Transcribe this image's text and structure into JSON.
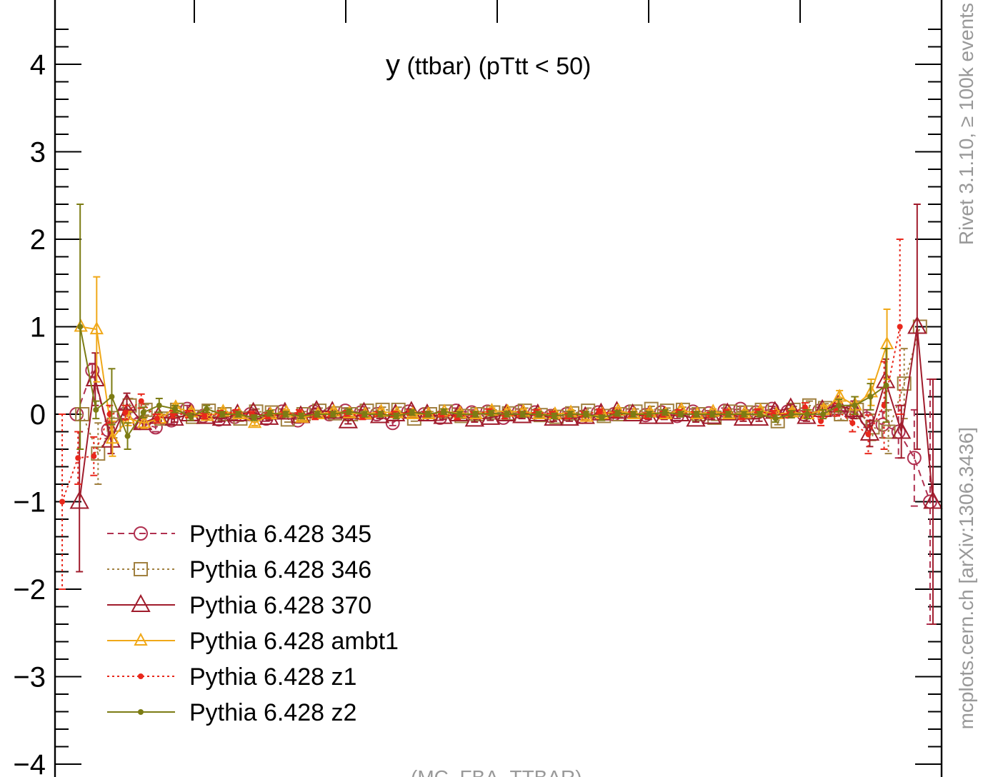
{
  "chart_data": {
    "type": "line",
    "title": "y (ttbar) (pTtt < 50)",
    "title_main": "y",
    "title_rest": " (ttbar) (pTtt < 50)",
    "xlabel": "",
    "ylabel": "",
    "ylim": [
      -4.0,
      4.55
    ],
    "xlim": [
      -0.5,
      55.5
    ],
    "y_ticks": [
      {
        "value": 4,
        "label": "4"
      },
      {
        "value": 3,
        "label": "3"
      },
      {
        "value": 2,
        "label": "2"
      },
      {
        "value": 1,
        "label": "1"
      },
      {
        "value": 0,
        "label": "0"
      },
      {
        "value": -1,
        "label": "−1"
      },
      {
        "value": -2,
        "label": "−2"
      },
      {
        "value": -3,
        "label": "−3"
      },
      {
        "value": -4,
        "label": "−4"
      }
    ],
    "grid": false,
    "legend_position": "bottom-left",
    "footer": "(MC_FBA_TTBAR)",
    "side_label_top": "Rivet 3.1.10, ≥ 100k events",
    "side_label_bottom": "mcplots.cern.ch [arXiv:1306.3436]",
    "series": [
      {
        "name": "Pythia 6.428 345",
        "color": "#b03050",
        "line_style": "dashed",
        "marker": "circle",
        "values": [
          -0.0,
          0.0,
          0.5,
          -0.18,
          0.0,
          -0.1,
          -0.15,
          -0.07,
          0.06,
          -0.02,
          -0.06,
          -0.03,
          0.0,
          -0.05,
          0.03,
          -0.07,
          0.03,
          0.0,
          0.04,
          0.02,
          0.0,
          -0.1,
          0.03,
          0.0,
          -0.04,
          0.04,
          0.02,
          0.03,
          -0.04,
          0.03,
          0.02,
          -0.02,
          0.0,
          -0.03,
          0.02,
          0.0,
          0.03,
          -0.01,
          0.02,
          -0.02,
          0.03,
          0.01,
          0.04,
          0.06,
          0.02,
          0.06,
          0.03,
          0.0,
          0.04,
          0.05,
          0.03,
          -0.05,
          -0.12,
          -0.2,
          -0.5,
          -1.0
        ],
        "errors": [
          0,
          0,
          0.08,
          0.1,
          0.05,
          0.05,
          0.05,
          0.04,
          0.04,
          0.03,
          0.03,
          0.03,
          0.03,
          0.03,
          0.03,
          0.03,
          0.03,
          0.03,
          0.03,
          0.03,
          0.03,
          0.03,
          0.03,
          0.03,
          0.03,
          0.03,
          0.03,
          0.03,
          0.03,
          0.03,
          0.03,
          0.03,
          0.03,
          0.03,
          0.03,
          0.03,
          0.03,
          0.03,
          0.03,
          0.03,
          0.03,
          0.03,
          0.03,
          0.03,
          0.03,
          0.03,
          0.03,
          0.04,
          0.04,
          0.05,
          0.06,
          0.1,
          0.15,
          0.3,
          0.55,
          1.4
        ]
      },
      {
        "name": "Pythia 6.428 346",
        "color": "#a08040",
        "line_style": "dotted",
        "marker": "square",
        "values": [
          0,
          0,
          -0.45,
          -0.12,
          0.1,
          0.05,
          -0.05,
          0.05,
          -0.03,
          0.04,
          0.0,
          -0.05,
          0.03,
          0.02,
          -0.06,
          0.0,
          0.04,
          0.01,
          0.0,
          0.04,
          0.05,
          0.05,
          -0.05,
          0.0,
          0.03,
          -0.02,
          0.0,
          0.02,
          0.01,
          0.04,
          -0.01,
          -0.03,
          0.01,
          0.04,
          -0.02,
          0.0,
          0.03,
          0.06,
          0.04,
          0.05,
          0.0,
          -0.04,
          0.03,
          0.02,
          0.05,
          -0.08,
          0.05,
          0.1,
          0.07,
          0.0,
          0.05,
          -0.15,
          -0.2,
          0.35,
          1.0,
          0
        ],
        "errors": [
          0,
          0,
          0.35,
          0.15,
          0.08,
          0.06,
          0.05,
          0.04,
          0.04,
          0.03,
          0.03,
          0.03,
          0.03,
          0.03,
          0.03,
          0.03,
          0.03,
          0.03,
          0.03,
          0.03,
          0.03,
          0.03,
          0.03,
          0.03,
          0.03,
          0.03,
          0.03,
          0.03,
          0.03,
          0.03,
          0.03,
          0.03,
          0.03,
          0.03,
          0.03,
          0.03,
          0.03,
          0.03,
          0.03,
          0.03,
          0.03,
          0.03,
          0.03,
          0.03,
          0.03,
          0.04,
          0.04,
          0.05,
          0.05,
          0.07,
          0.1,
          0.15,
          0.25,
          0.4,
          0.0,
          0
        ]
      },
      {
        "name": "Pythia 6.428 370",
        "color": "#a01c2c",
        "line_style": "solid",
        "marker": "triangle",
        "values": [
          0,
          -1.0,
          0.4,
          -0.3,
          0.12,
          -0.1,
          -0.03,
          -0.05,
          0.0,
          -0.03,
          -0.05,
          0.0,
          0.02,
          -0.04,
          0.02,
          -0.02,
          0.04,
          0.03,
          -0.08,
          0.02,
          -0.02,
          0.0,
          0.03,
          0.0,
          -0.03,
          0.0,
          -0.06,
          -0.04,
          0.0,
          -0.02,
          0.0,
          -0.05,
          -0.05,
          -0.03,
          0.01,
          0.03,
          0.0,
          -0.03,
          -0.03,
          0.0,
          -0.06,
          -0.03,
          0.01,
          -0.05,
          -0.05,
          0.03,
          0.07,
          -0.03,
          0.05,
          0.1,
          0.05,
          -0.22,
          0.38,
          -0.2,
          1.0,
          -1.0
        ],
        "errors": [
          0,
          0.8,
          0.3,
          0.15,
          0.12,
          0.06,
          0.05,
          0.04,
          0.04,
          0.03,
          0.03,
          0.03,
          0.03,
          0.03,
          0.03,
          0.03,
          0.03,
          0.03,
          0.03,
          0.03,
          0.03,
          0.03,
          0.03,
          0.03,
          0.03,
          0.03,
          0.03,
          0.03,
          0.03,
          0.03,
          0.03,
          0.03,
          0.03,
          0.03,
          0.03,
          0.03,
          0.03,
          0.03,
          0.03,
          0.03,
          0.03,
          0.03,
          0.03,
          0.03,
          0.03,
          0.04,
          0.04,
          0.05,
          0.05,
          0.07,
          0.1,
          0.15,
          0.25,
          0.3,
          1.4,
          1.4
        ]
      },
      {
        "name": "Pythia 6.428 ambt1",
        "color": "#f0a818",
        "line_style": "solid",
        "marker": "triangle-small",
        "values": [
          0,
          1.0,
          0.97,
          -0.28,
          -0.05,
          -0.1,
          -0.05,
          0.08,
          0.02,
          -0.02,
          0.03,
          0.0,
          -0.1,
          0.0,
          0.02,
          -0.04,
          0.0,
          0.03,
          0.01,
          0.0,
          0.03,
          0.01,
          0.0,
          0.0,
          0.03,
          0.01,
          0.0,
          0.04,
          0.03,
          0.03,
          0.0,
          0.0,
          0.02,
          -0.03,
          0.0,
          0.04,
          0.0,
          0.02,
          0.0,
          0.05,
          0.0,
          0.03,
          0.0,
          0.01,
          0.04,
          0.0,
          0.02,
          0.0,
          0.05,
          0.2,
          0.1,
          0.25,
          0.8,
          0,
          0,
          0
        ],
        "errors": [
          0,
          0,
          0.6,
          0.2,
          0.08,
          0.06,
          0.05,
          0.04,
          0.04,
          0.03,
          0.03,
          0.03,
          0.03,
          0.03,
          0.03,
          0.03,
          0.03,
          0.03,
          0.03,
          0.03,
          0.03,
          0.03,
          0.03,
          0.03,
          0.03,
          0.03,
          0.03,
          0.03,
          0.03,
          0.03,
          0.03,
          0.03,
          0.03,
          0.03,
          0.03,
          0.03,
          0.03,
          0.03,
          0.03,
          0.03,
          0.03,
          0.03,
          0.03,
          0.03,
          0.03,
          0.04,
          0.04,
          0.05,
          0.05,
          0.07,
          0.1,
          0.15,
          0.4,
          0,
          0,
          0
        ]
      },
      {
        "name": "Pythia 6.428 z1",
        "color": "#e8281c",
        "line_style": "dotted",
        "marker": "dot",
        "values": [
          -1.0,
          -0.5,
          -0.48,
          0.0,
          0.02,
          0.15,
          -0.05,
          0.0,
          0.0,
          -0.02,
          0.01,
          0.02,
          0.0,
          -0.02,
          0.0,
          0.02,
          -0.03,
          0.0,
          0.01,
          -0.03,
          0.0,
          0.0,
          0.02,
          0.0,
          0.0,
          -0.03,
          0.0,
          0.03,
          -0.02,
          0.0,
          0.02,
          0.0,
          -0.02,
          0.0,
          0.03,
          0.0,
          0.0,
          -0.02,
          0.0,
          0.02,
          0.0,
          -0.01,
          0.02,
          -0.03,
          0.03,
          0.0,
          0.0,
          0.08,
          -0.08,
          0.05,
          -0.1,
          -0.23,
          0.1,
          1.0,
          0,
          0
        ],
        "errors": [
          1.0,
          0.3,
          0.22,
          0.1,
          0.08,
          0.08,
          0.05,
          0.04,
          0.04,
          0.03,
          0.03,
          0.03,
          0.03,
          0.03,
          0.03,
          0.03,
          0.03,
          0.03,
          0.03,
          0.03,
          0.03,
          0.03,
          0.03,
          0.03,
          0.03,
          0.03,
          0.03,
          0.03,
          0.03,
          0.03,
          0.03,
          0.03,
          0.03,
          0.03,
          0.03,
          0.03,
          0.03,
          0.03,
          0.03,
          0.03,
          0.03,
          0.03,
          0.03,
          0.03,
          0.03,
          0.04,
          0.04,
          0.05,
          0.05,
          0.07,
          0.1,
          0.22,
          0.5,
          1.0,
          0,
          0
        ]
      },
      {
        "name": "Pythia 6.428 z2",
        "color": "#7c7c14",
        "line_style": "solid",
        "marker": "dot",
        "values": [
          0,
          1.0,
          0.05,
          0.2,
          -0.25,
          0.02,
          0.1,
          0.06,
          -0.03,
          0.06,
          0.0,
          0.0,
          -0.04,
          0.01,
          0.0,
          -0.02,
          0.0,
          0.0,
          0.03,
          0.0,
          0.0,
          -0.02,
          0.02,
          0.0,
          0.03,
          0.0,
          0.0,
          0.01,
          0.0,
          0.0,
          0.0,
          -0.02,
          0.0,
          0.0,
          -0.04,
          0.01,
          0.0,
          0.0,
          0.02,
          0.0,
          0.0,
          0.0,
          0.0,
          0.0,
          0.0,
          -0.05,
          0.0,
          0.0,
          0.0,
          0.1,
          0.1,
          0.2,
          0.33,
          0,
          0,
          0
        ],
        "errors": [
          0,
          1.4,
          0.1,
          0.32,
          0.15,
          0.06,
          0.08,
          0.04,
          0.04,
          0.04,
          0.03,
          0.03,
          0.03,
          0.03,
          0.03,
          0.03,
          0.03,
          0.03,
          0.03,
          0.03,
          0.03,
          0.03,
          0.03,
          0.03,
          0.03,
          0.03,
          0.03,
          0.03,
          0.03,
          0.03,
          0.03,
          0.03,
          0.03,
          0.03,
          0.03,
          0.03,
          0.03,
          0.03,
          0.03,
          0.03,
          0.03,
          0.03,
          0.03,
          0.03,
          0.03,
          0.04,
          0.04,
          0.05,
          0.05,
          0.07,
          0.1,
          0.15,
          0.42,
          0,
          0,
          0
        ]
      }
    ]
  }
}
